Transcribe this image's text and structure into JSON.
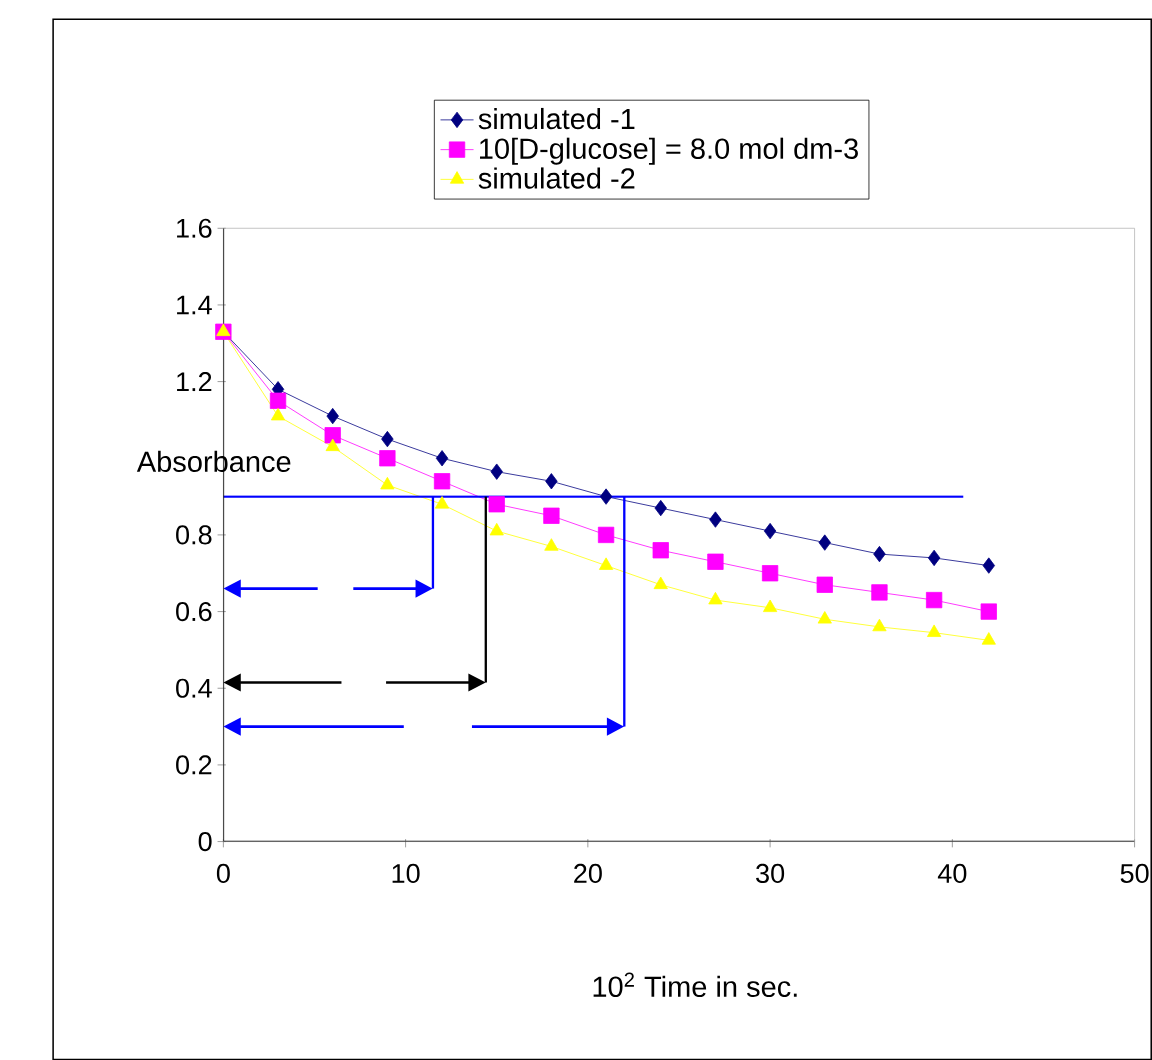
{
  "chart_data": {
    "type": "line",
    "xlabel": "10$^{2}$ Time in sec.",
    "ylabel": "Absorbance",
    "x": [
      0,
      3,
      6,
      9,
      12,
      15,
      18,
      21,
      24,
      27,
      30,
      33,
      36,
      39,
      42
    ],
    "series": [
      {
        "name": "simulated -1",
        "color": "#000080",
        "marker": "diamond",
        "values": [
          1.33,
          1.18,
          1.11,
          1.05,
          1.0,
          0.965,
          0.94,
          0.9,
          0.87,
          0.84,
          0.81,
          0.78,
          0.75,
          0.74,
          0.72
        ]
      },
      {
        "name": "10[D-glucose] = 8.0 mol dm-3",
        "color": "#ff00ff",
        "marker": "square",
        "values": [
          1.33,
          1.15,
          1.06,
          1.0,
          0.94,
          0.88,
          0.85,
          0.8,
          0.76,
          0.73,
          0.7,
          0.67,
          0.65,
          0.63,
          0.6
        ]
      },
      {
        "name": "simulated -2",
        "color": "#ffff00",
        "marker": "triangle",
        "values": [
          1.33,
          1.11,
          1.03,
          0.93,
          0.88,
          0.81,
          0.77,
          0.72,
          0.67,
          0.63,
          0.61,
          0.58,
          0.56,
          0.545,
          0.525
        ]
      }
    ],
    "xlim": [
      0,
      50
    ],
    "xticks": [
      0,
      10,
      20,
      30,
      40,
      50
    ],
    "ylim": [
      0,
      1.6
    ],
    "yticks": [
      0,
      0.2,
      0.4,
      0.6,
      0.8,
      {
        "value": 1,
        "label": null
      },
      1.2,
      1.4,
      1.6
    ],
    "ref_lines": [
      {
        "axis": "y",
        "value": 0.9,
        "color": "#0000ff"
      },
      {
        "axis": "x",
        "value": 11.5,
        "color": "#0000ff"
      },
      {
        "axis": "x",
        "value": 14.4,
        "color": "#000000"
      },
      {
        "axis": "x",
        "value": 22,
        "color": "#0000ff"
      }
    ],
    "grid": false,
    "legend": "top"
  }
}
